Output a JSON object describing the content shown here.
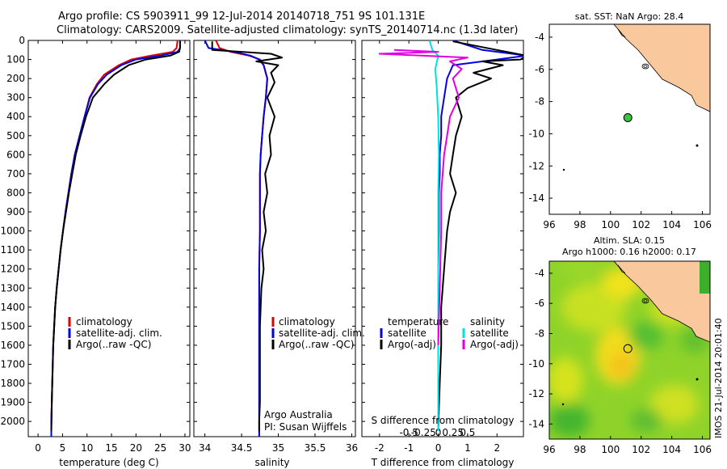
{
  "header": {
    "line1": "Argo profile: CS 5903911_99 12-Jul-2014 20140718_751 9S 101.131E",
    "line2": "Climatology: CARS2009. Satellite-adjusted climatology: synTS_20140714.nc (1.3d later)"
  },
  "colors": {
    "clim": "#e00000",
    "sat": "#0000e0",
    "argo": "#000000",
    "sat_s": "#00e0e0",
    "argo_s": "#e000e0",
    "land": "#f9c89c"
  },
  "credit": {
    "line1": "Argo Australia",
    "line2": "PI: Susan Wijffels"
  },
  "stamp": "IMOS 21-Jul-2014 20:01:40",
  "chart_data": [
    {
      "type": "line",
      "id": "temperature",
      "xlabel": "temperature (deg C)",
      "ylabel": "",
      "xlim": [
        -2,
        31
      ],
      "ylim": [
        2080,
        0
      ],
      "y_inverted": true,
      "xticks": [
        0,
        5,
        10,
        15,
        20,
        25,
        30
      ],
      "yticks": [
        0,
        100,
        200,
        300,
        400,
        500,
        600,
        700,
        800,
        900,
        1000,
        1100,
        1200,
        1300,
        1400,
        1500,
        1600,
        1700,
        1800,
        1900,
        2000
      ],
      "legend": [
        "climatology",
        "satellite-adj. clim.",
        "Argo(..raw -QC)"
      ],
      "legend_position": "lower-right",
      "series": [
        {
          "name": "climatology",
          "color_key": "clim",
          "x": [
            28.5,
            28.3,
            27.5,
            23,
            19,
            16.5,
            13.5,
            12,
            10.5,
            9.5,
            8.5,
            7.5,
            6.8,
            6.2,
            5.6,
            5.1,
            4.6,
            4.2,
            3.8,
            3.5,
            3.3,
            3.1,
            3.0,
            2.9,
            2.8,
            2.7,
            2.7
          ],
          "y": [
            0,
            40,
            60,
            80,
            100,
            130,
            180,
            230,
            300,
            400,
            500,
            600,
            700,
            800,
            900,
            1000,
            1100,
            1200,
            1300,
            1400,
            1500,
            1600,
            1700,
            1800,
            1900,
            2000,
            2080
          ]
        },
        {
          "name": "satellite-adj. clim.",
          "color_key": "sat",
          "x": [
            29,
            29,
            28.5,
            25,
            20,
            17,
            14,
            12.2,
            10.6,
            9.5,
            8.5,
            7.5,
            6.8,
            6.2,
            5.6,
            5.1,
            4.6,
            4.2,
            3.8,
            3.5,
            3.3,
            3.1,
            3.0,
            2.9,
            2.8,
            2.7,
            2.7
          ],
          "y": [
            0,
            40,
            60,
            80,
            100,
            130,
            180,
            230,
            300,
            400,
            500,
            600,
            700,
            800,
            900,
            1000,
            1100,
            1200,
            1300,
            1400,
            1500,
            1600,
            1700,
            1800,
            1900,
            2000,
            2080
          ]
        },
        {
          "name": "Argo(..raw -QC)",
          "color_key": "argo",
          "x": [
            29,
            29,
            28.8,
            27,
            22,
            18.5,
            15.5,
            13.5,
            11.2,
            9.8,
            8.7,
            7.7,
            7.0,
            6.3,
            5.7,
            5.1,
            4.6,
            4.2,
            3.8,
            3.5,
            3.3,
            3.1,
            3.0,
            2.9,
            2.8,
            2.75,
            2.7
          ],
          "y": [
            5,
            40,
            60,
            80,
            100,
            130,
            180,
            230,
            300,
            400,
            500,
            600,
            700,
            800,
            900,
            1000,
            1100,
            1200,
            1300,
            1400,
            1500,
            1600,
            1700,
            1800,
            1900,
            2000,
            2050
          ]
        }
      ]
    },
    {
      "type": "line",
      "id": "salinity",
      "xlabel": "salinity",
      "ylabel": "",
      "xlim": [
        33.85,
        36.05
      ],
      "ylim": [
        2080,
        0
      ],
      "y_inverted": true,
      "xticks": [
        34,
        34.5,
        35,
        35.5,
        36
      ],
      "legend": [
        "climatology",
        "satellite-adj. clim.",
        "Argo(..raw -QC)"
      ],
      "legend_position": "lower-right",
      "series": [
        {
          "name": "climatology",
          "color_key": "clim",
          "x": [
            34.15,
            34.2,
            34.35,
            34.6,
            34.75,
            34.8,
            34.85,
            34.83,
            34.8,
            34.78,
            34.76,
            34.75,
            34.75,
            34.75,
            34.75,
            34.74,
            34.74,
            34.74,
            34.74,
            34.74,
            34.74,
            34.74
          ],
          "y": [
            0,
            40,
            60,
            80,
            100,
            130,
            200,
            300,
            400,
            500,
            600,
            700,
            800,
            900,
            1000,
            1200,
            1400,
            1600,
            1800,
            1900,
            2000,
            2080
          ]
        },
        {
          "name": "satellite-adj. clim.",
          "color_key": "sat",
          "x": [
            34.0,
            34.05,
            34.4,
            34.62,
            34.74,
            34.8,
            34.85,
            34.83,
            34.8,
            34.78,
            34.76,
            34.75,
            34.75,
            34.75,
            34.75,
            34.74,
            34.74,
            34.74,
            34.74,
            34.74,
            34.74,
            34.74
          ],
          "y": [
            0,
            40,
            60,
            80,
            100,
            130,
            200,
            300,
            400,
            500,
            600,
            700,
            800,
            900,
            1000,
            1200,
            1400,
            1600,
            1800,
            1900,
            2000,
            2080
          ]
        },
        {
          "name": "Argo(..raw -QC)",
          "color_key": "argo",
          "x": [
            34.1,
            34.1,
            34.5,
            34.9,
            35.05,
            34.7,
            35.0,
            34.9,
            34.95,
            34.85,
            34.95,
            34.88,
            34.9,
            34.82,
            34.85,
            34.8,
            34.83,
            34.78,
            34.8,
            34.77,
            34.76,
            34.75,
            34.75,
            34.75,
            34.74,
            34.74
          ],
          "y": [
            5,
            50,
            60,
            70,
            90,
            110,
            130,
            170,
            220,
            300,
            400,
            500,
            600,
            700,
            800,
            900,
            1000,
            1100,
            1200,
            1300,
            1400,
            1500,
            1700,
            1900,
            2000,
            2050
          ]
        }
      ]
    },
    {
      "type": "line",
      "id": "differences",
      "xlabel": "T difference from climatology",
      "xlabel2": "S difference from climatology",
      "xlim": [
        -2.6,
        2.9
      ],
      "ylim": [
        2080,
        0
      ],
      "y_inverted": true,
      "xticks_T": [
        -2,
        -1,
        0,
        1,
        2
      ],
      "xticks_S": [
        -0.5,
        -0.25,
        0,
        0.25,
        0.5
      ],
      "legend": [
        "temperature",
        "satellite",
        "Argo(-adj)",
        "salinity",
        "satellite",
        "Argo(-adj)"
      ],
      "legend_position": "lower-right",
      "series": [
        {
          "name": "satellite",
          "group": "temperature",
          "color_key": "sat",
          "x": [
            0.5,
            1.5,
            3.0,
            2.0,
            0.5,
            0.3,
            0.2,
            0.1,
            0.1,
            0.05,
            0.05,
            0.02,
            0.02,
            0.0,
            0.0,
            0.0,
            0.0,
            0.0,
            0.0
          ],
          "y": [
            0,
            50,
            80,
            100,
            130,
            200,
            300,
            400,
            500,
            600,
            700,
            800,
            1000,
            1200,
            1400,
            1600,
            1800,
            2000,
            2050
          ]
        },
        {
          "name": "Argo(-adj)",
          "group": "temperature",
          "color_key": "argo",
          "x": [
            0.5,
            2.0,
            3.0,
            2.8,
            1.5,
            2.2,
            1.2,
            1.8,
            1.0,
            0.6,
            0.8,
            0.6,
            0.5,
            0.4,
            0.6,
            0.4,
            0.3,
            0.2,
            0.1,
            0.1,
            0.05,
            0.0
          ],
          "y": [
            5,
            50,
            80,
            100,
            110,
            130,
            170,
            200,
            250,
            300,
            400,
            500,
            600,
            700,
            800,
            900,
            1000,
            1200,
            1400,
            1600,
            1800,
            2050
          ]
        },
        {
          "name": "satellite",
          "group": "salinity",
          "color_key": "sat_s",
          "x": [
            -0.3,
            -0.2,
            0.0,
            -0.1,
            -0.05,
            0.0,
            0.02,
            0.0,
            0.0,
            0.0,
            0.0,
            0.0,
            0.0
          ],
          "y": [
            0,
            50,
            80,
            150,
            250,
            400,
            600,
            800,
            1000,
            1300,
            1600,
            1900,
            2050
          ]
        },
        {
          "name": "Argo(-adj)",
          "group": "salinity",
          "color_key": "argo_s",
          "x": [
            -1.5,
            0.0,
            -2.0,
            1.0,
            0.4,
            0.8,
            0.5,
            0.7,
            0.4,
            0.3,
            0.2,
            0.1,
            0.1,
            0.05,
            0.0
          ],
          "y": [
            50,
            60,
            70,
            90,
            110,
            150,
            200,
            300,
            400,
            500,
            600,
            800,
            1000,
            1300,
            1600
          ]
        }
      ]
    },
    {
      "type": "scatter",
      "id": "location-map",
      "title": "sat. SST: NaN Argo: 28.4",
      "xlim": [
        96,
        106.5
      ],
      "ylim": [
        -15,
        -3.2
      ],
      "xticks": [
        96,
        98,
        100,
        102,
        104,
        106
      ],
      "yticks": [
        -4,
        -6,
        -8,
        -10,
        -12,
        -14
      ],
      "points": [
        {
          "x": 101.131,
          "y": -9.0
        }
      ]
    },
    {
      "type": "heatmap",
      "id": "sla-map",
      "title": "Altim. SLA: 0.15",
      "subtitle": "Argo h1000: 0.16 h2000: 0.17",
      "xlim": [
        96,
        106.5
      ],
      "ylim": [
        -15,
        -3.2
      ],
      "xticks": [
        96,
        98,
        100,
        102,
        104,
        106
      ],
      "yticks": [
        -4,
        -6,
        -8,
        -10,
        -12,
        -14
      ],
      "points": [
        {
          "x": 101.131,
          "y": -9.0
        }
      ]
    }
  ]
}
